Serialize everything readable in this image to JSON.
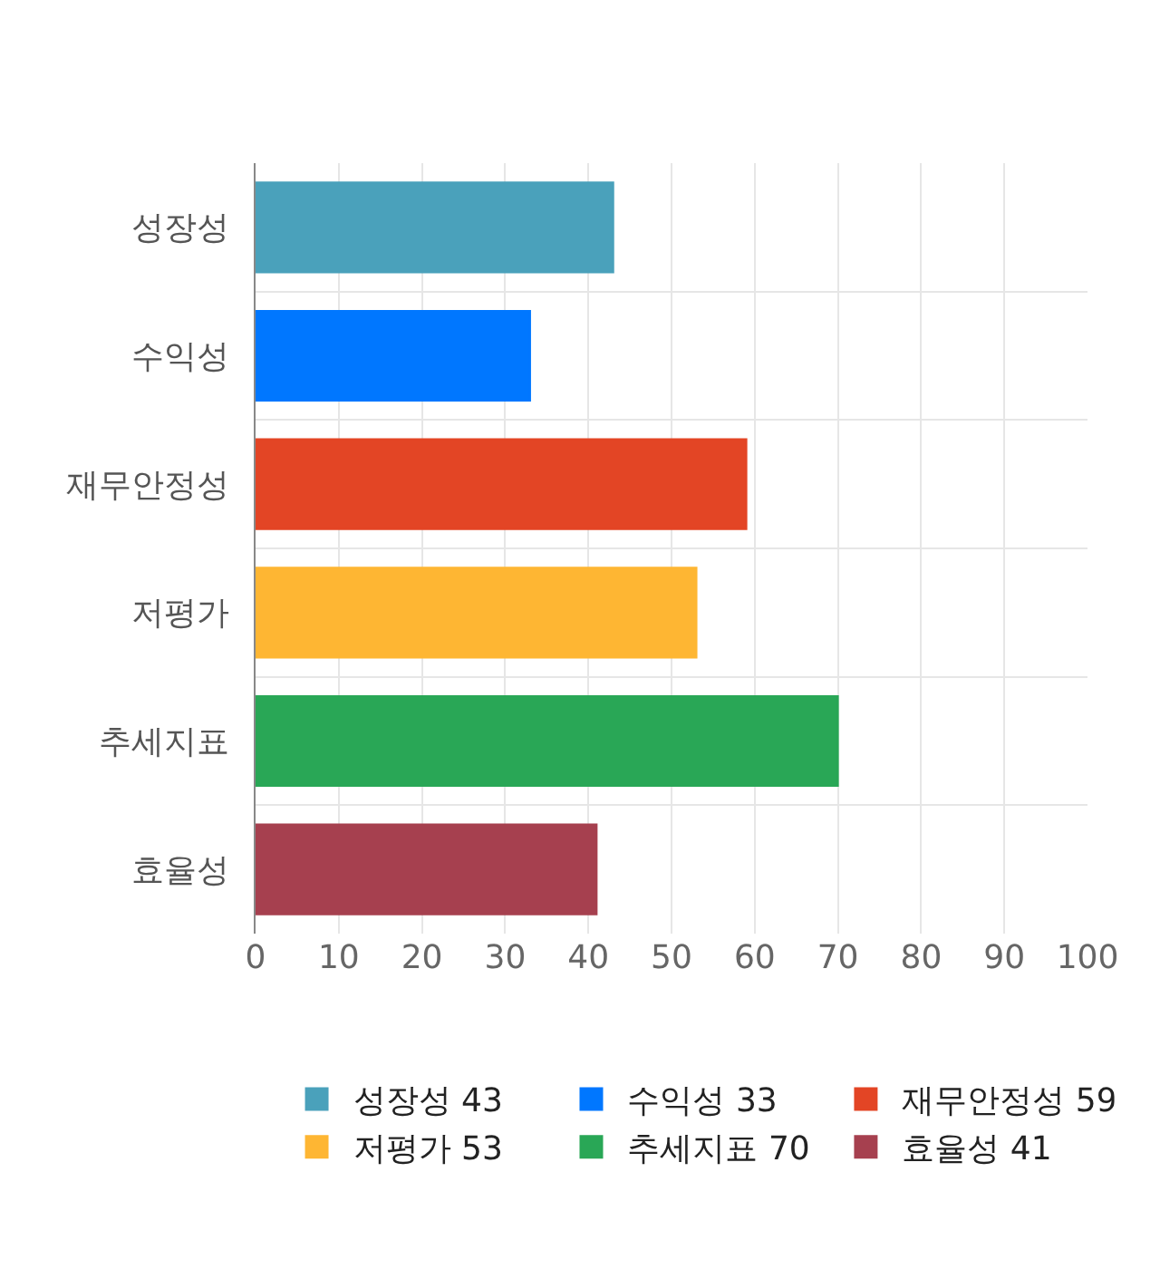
{
  "chart_data": {
    "type": "bar",
    "orientation": "horizontal",
    "categories": [
      "성장성",
      "수익성",
      "재무안정성",
      "저평가",
      "추세지표",
      "효율성"
    ],
    "series": [
      {
        "name": "성장성 43",
        "color": "#4aa1bb",
        "values": [
          43,
          null,
          null,
          null,
          null,
          null
        ]
      },
      {
        "name": "수익성 33",
        "color": "#0077ff",
        "values": [
          null,
          33,
          null,
          null,
          null,
          null
        ]
      },
      {
        "name": "재무안정성 59",
        "color": "#e34525",
        "values": [
          null,
          null,
          59,
          null,
          null,
          null
        ]
      },
      {
        "name": "저평가 53",
        "color": "#feb633",
        "values": [
          null,
          null,
          null,
          53,
          null,
          null
        ]
      },
      {
        "name": "추세지표 70",
        "color": "#29a756",
        "values": [
          null,
          null,
          null,
          null,
          70,
          null
        ]
      },
      {
        "name": "효율성 41",
        "color": "#a6404f",
        "values": [
          null,
          null,
          null,
          null,
          null,
          41
        ]
      }
    ],
    "xlim": [
      0,
      100
    ],
    "xticks": [
      0,
      10,
      20,
      30,
      40,
      50,
      60,
      70,
      80,
      90,
      100
    ],
    "grid": true,
    "legend": "bottom"
  }
}
